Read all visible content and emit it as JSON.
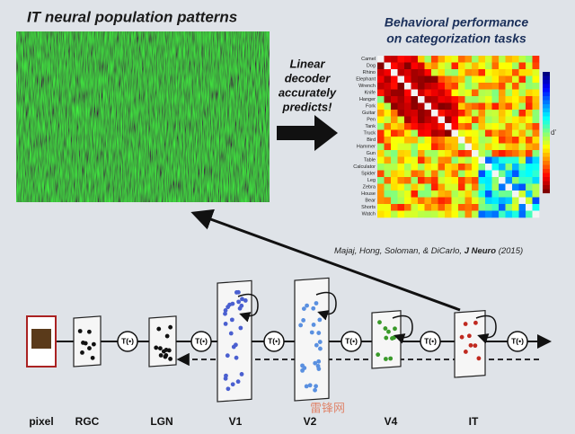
{
  "title": "IT neural population patterns",
  "decoder_text": [
    "Linear",
    "decoder",
    "accurately",
    "predicts!"
  ],
  "behavior_title": [
    "Behavioral performance",
    "on categorization tasks"
  ],
  "matrix": {
    "categories": [
      "Camel",
      "Dog",
      "Rhino",
      "Elephant",
      "Wrench",
      "Knife",
      "Hanger",
      "Fork",
      "Guitar",
      "Pen",
      "Tank",
      "Truck",
      "Bird",
      "Hammer",
      "Gun",
      "Table",
      "Calculator",
      "Spider",
      "Leg",
      "Zebra",
      "House",
      "Bear",
      "Shorts",
      "Watch"
    ],
    "colorbar_label": "d'"
  },
  "citation": {
    "authors": "Majaj, Hong, Soloman, & DiCarlo,",
    "journal": "J Neuro",
    "year": "(2015)"
  },
  "stages": [
    "pixel",
    "RGC",
    "LGN",
    "V1",
    "V2",
    "V4",
    "IT"
  ],
  "operators": [
    "T(•)",
    "T(•)",
    "T(•)",
    "T(•)",
    "T(•)",
    "T(•)"
  ],
  "watermark": "雷锋网"
}
